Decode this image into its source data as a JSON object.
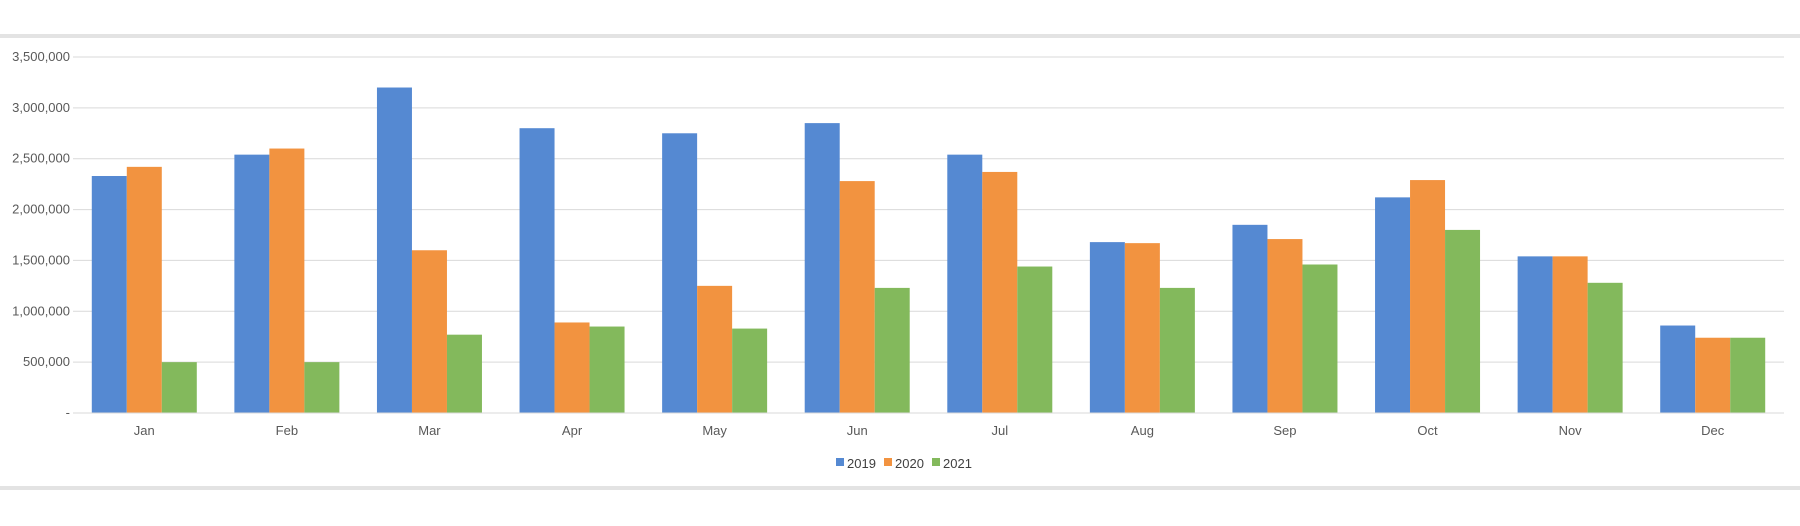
{
  "chart_data": {
    "type": "bar",
    "categories": [
      "Jan",
      "Feb",
      "Mar",
      "Apr",
      "May",
      "Jun",
      "Jul",
      "Aug",
      "Sep",
      "Oct",
      "Nov",
      "Dec"
    ],
    "series": [
      {
        "name": "2019",
        "color": "#5589d2",
        "values": [
          2330000,
          2540000,
          3200000,
          2800000,
          2750000,
          2850000,
          2540000,
          1680000,
          1850000,
          2120000,
          1540000,
          860000
        ]
      },
      {
        "name": "2020",
        "color": "#f29340",
        "values": [
          2420000,
          2600000,
          1600000,
          890000,
          1250000,
          2280000,
          2370000,
          1670000,
          1710000,
          2290000,
          1540000,
          740000
        ]
      },
      {
        "name": "2021",
        "color": "#83b95c",
        "values": [
          500000,
          500000,
          770000,
          850000,
          830000,
          1230000,
          1440000,
          1230000,
          1460000,
          1800000,
          1280000,
          740000
        ]
      }
    ],
    "ylim": [
      0,
      3500000
    ],
    "ytick_values": [
      0,
      500000,
      1000000,
      1500000,
      2000000,
      2500000,
      3000000,
      3500000
    ],
    "ytick_labels": [
      "-",
      "500,000",
      "1,000,000",
      "1,500,000",
      "2,000,000",
      "2,500,000",
      "3,000,000",
      "3,500,000"
    ],
    "grid": true,
    "legend": "bottom-center"
  }
}
